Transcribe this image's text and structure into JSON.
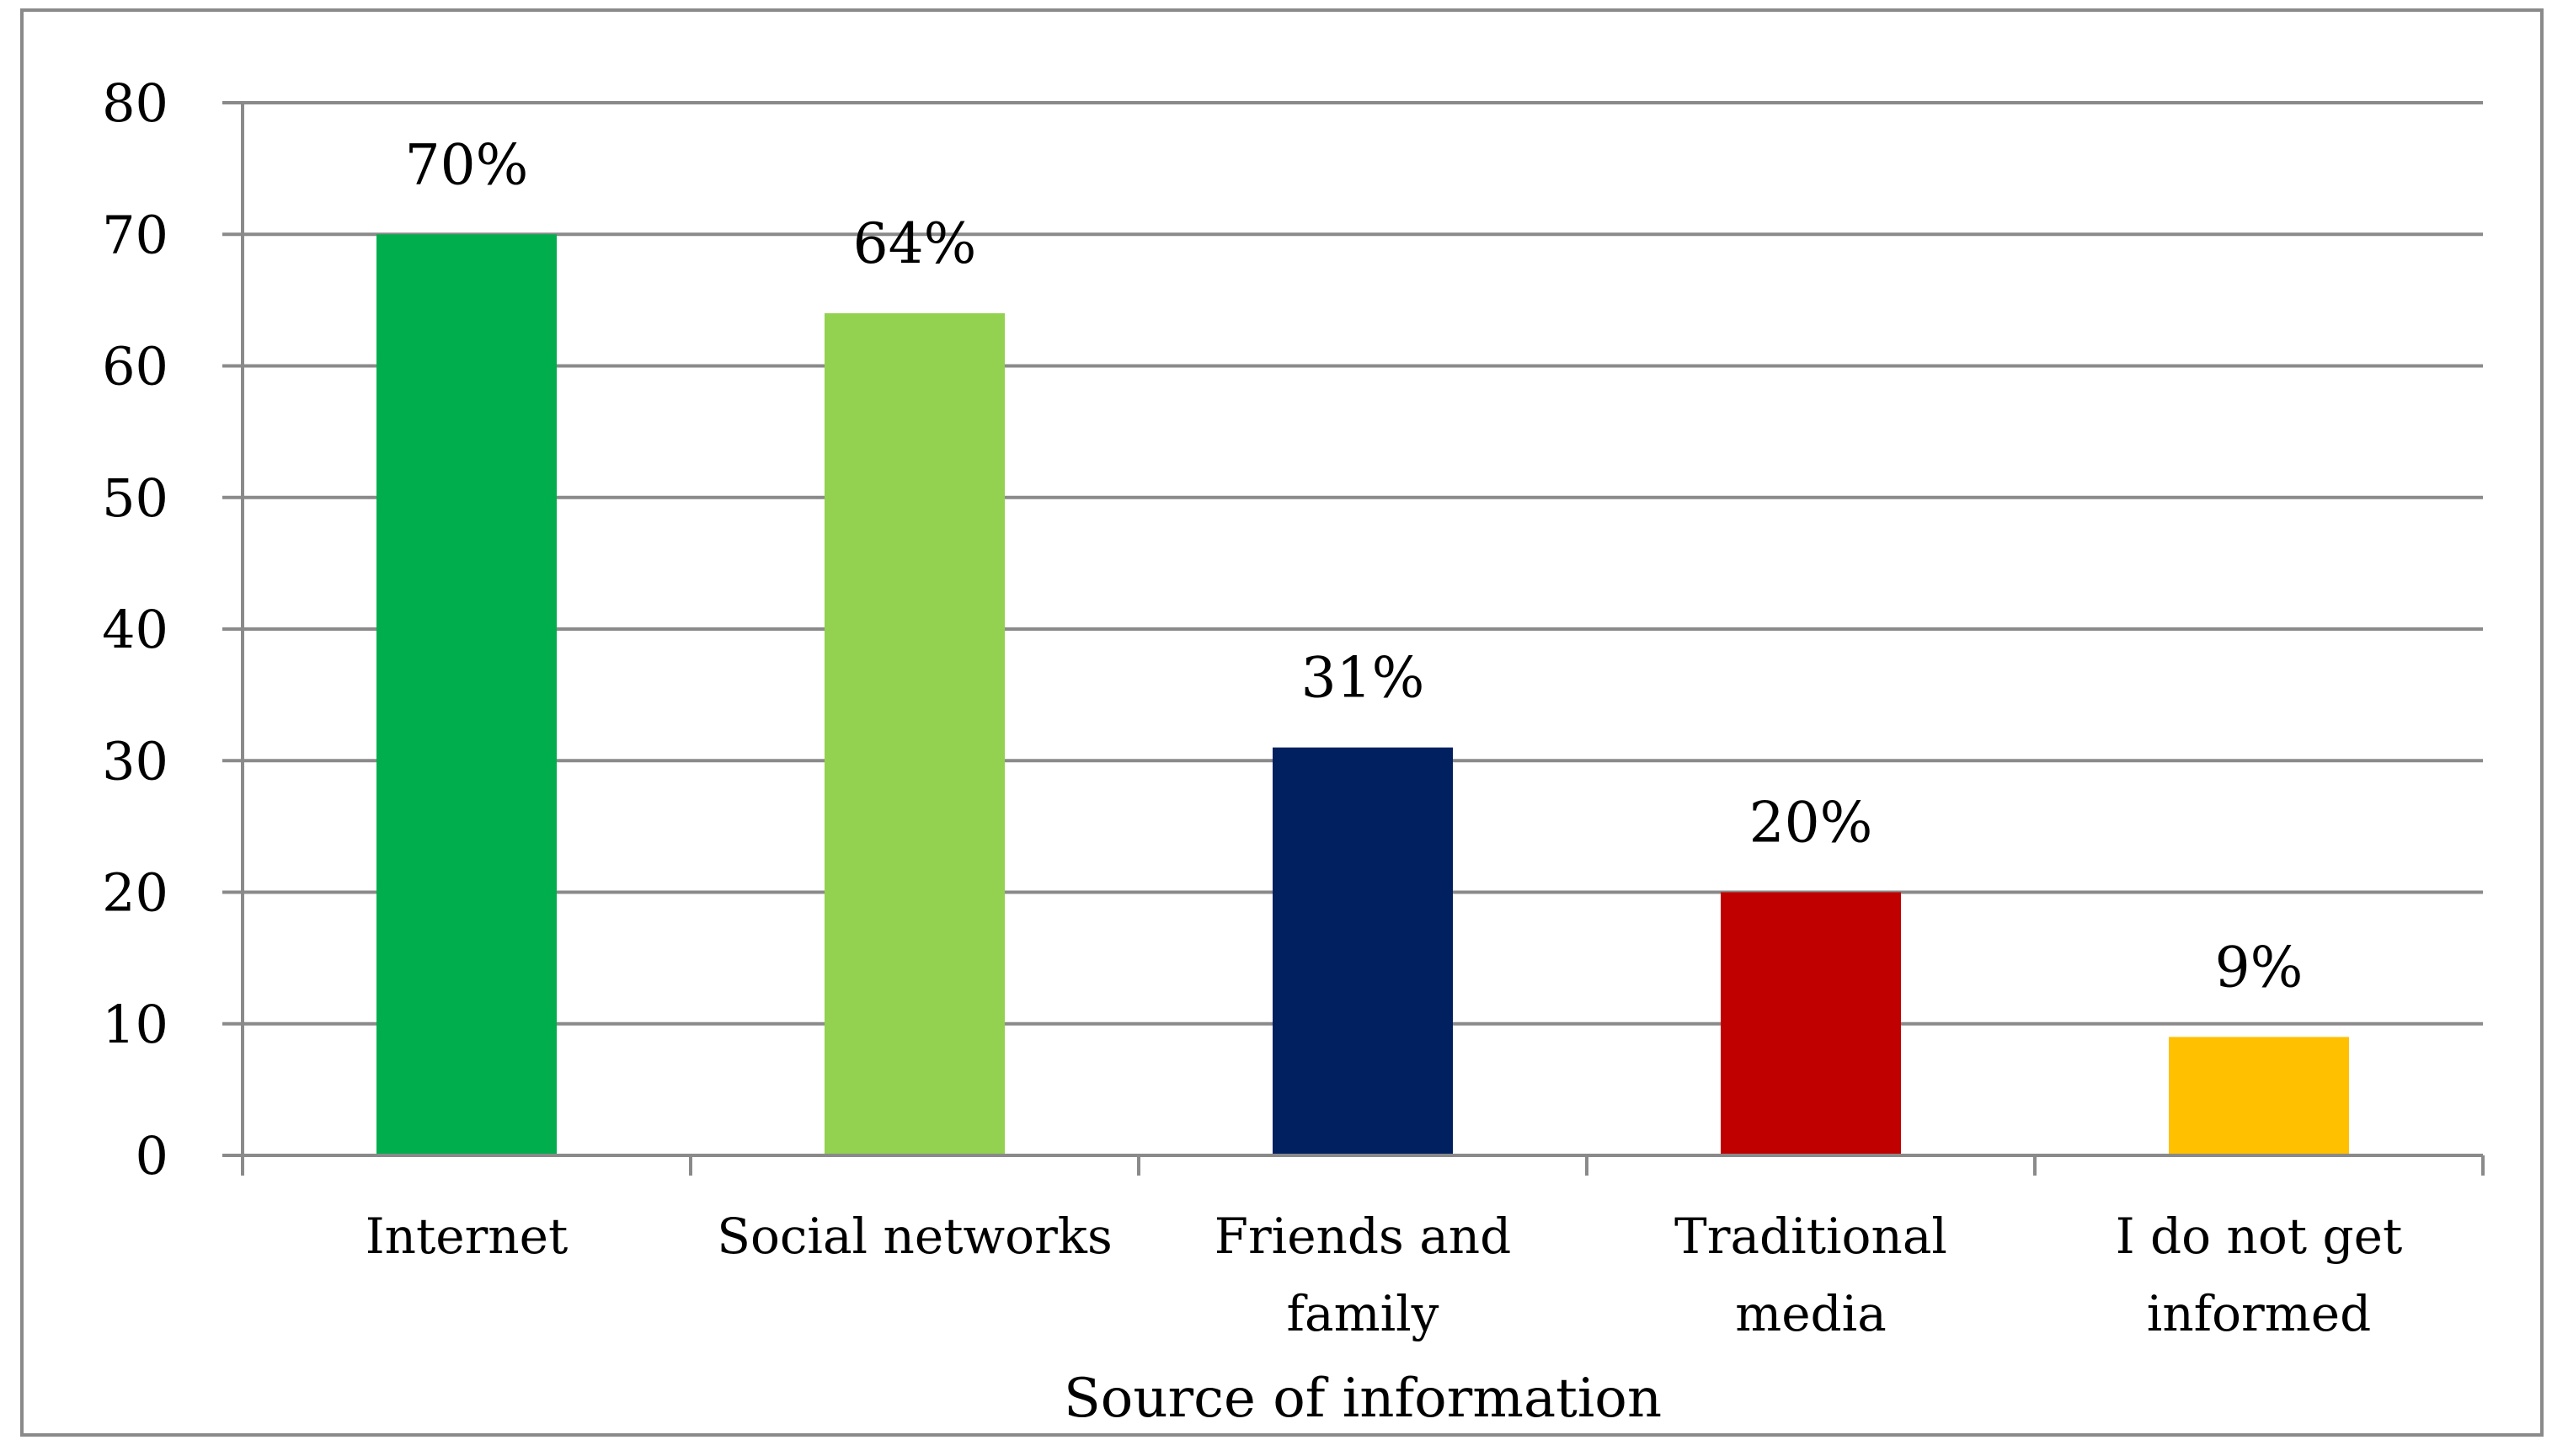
{
  "chart_data": {
    "type": "bar",
    "title": "",
    "xlabel": "Source of information",
    "ylabel": "",
    "ylim": [
      0,
      80
    ],
    "yticks": [
      0,
      10,
      20,
      30,
      40,
      50,
      60,
      70,
      80
    ],
    "grid": true,
    "legend": "none",
    "categories": [
      "Internet",
      "Social networks",
      "Friends and family",
      "Traditional media",
      "I do not get informed"
    ],
    "category_lines": [
      [
        "Internet"
      ],
      [
        "Social networks"
      ],
      [
        "Friends and",
        "family"
      ],
      [
        "Traditional",
        "media"
      ],
      [
        "I do not get",
        "informed"
      ]
    ],
    "values": [
      70,
      64,
      31,
      20,
      9
    ],
    "data_labels": [
      "70%",
      "64%",
      "31%",
      "20%",
      "9%"
    ],
    "colors": [
      "#00AE4D",
      "#93D150",
      "#002060",
      "#C00000",
      "#FFC000"
    ]
  }
}
